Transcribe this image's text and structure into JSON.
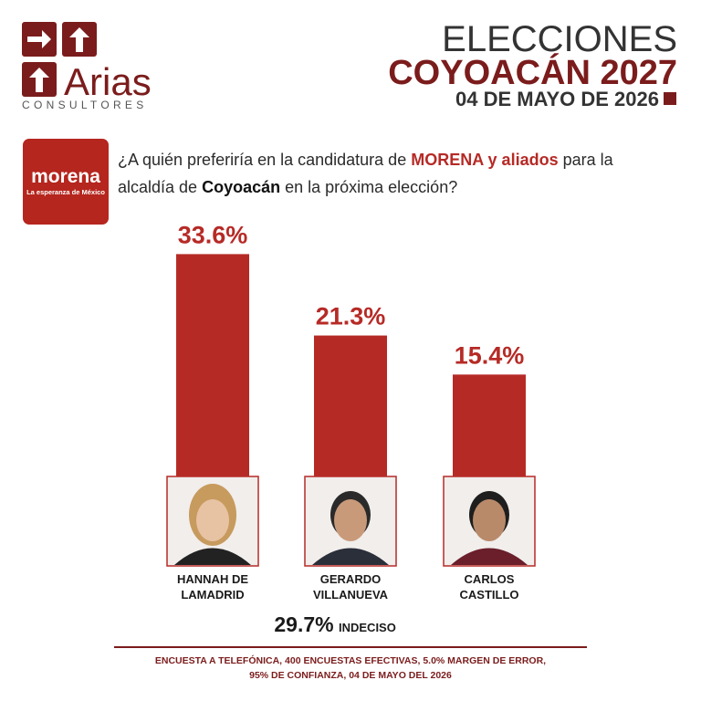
{
  "brand": {
    "name": "Arias",
    "tagline": "CONSULTORES"
  },
  "header": {
    "kicker": "ELECCIONES",
    "title": "COYOACÁN 2027",
    "date": "04 DE MAYO DE 2026"
  },
  "party": {
    "name": "morena",
    "slogan": "La esperanza de México"
  },
  "question": [
    "¿A quién preferiría en la candidatura de ",
    "MORENA y aliados",
    " para la alcaldía de ",
    "Coyoacán",
    " en la próxima elección?"
  ],
  "chart_data": {
    "type": "bar",
    "color": "#b62a26",
    "categories": [
      "HANNAH DE LAMADRID",
      "GERARDO VILLANUEVA",
      "CARLOS CASTILLO"
    ],
    "values": [
      33.6,
      21.3,
      15.4
    ],
    "value_labels": [
      "33.6%",
      "21.3%",
      "15.4%"
    ]
  },
  "undecided": {
    "label": "29.7%",
    "text": "INDECISO"
  },
  "footnote": [
    "ENCUESTA A TELEFÓNICA, 400 ENCUESTAS EFECTIVAS, 5.0% MARGEN DE ERROR,",
    "95% DE CONFIANZA, 04 DE MAYO DEL 2026"
  ]
}
